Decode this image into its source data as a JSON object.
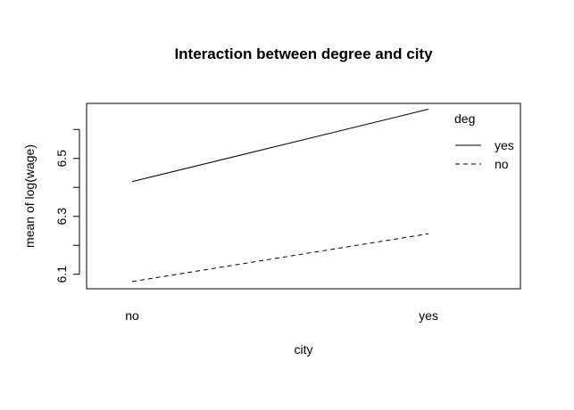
{
  "chart_data": {
    "type": "line",
    "title": "Interaction between degree and city",
    "xlabel": "city",
    "ylabel": "mean of  log(wage)",
    "categories": [
      "no",
      "yes"
    ],
    "series": [
      {
        "name": "yes",
        "values": [
          6.42,
          6.67
        ],
        "linestyle": "solid"
      },
      {
        "name": "no",
        "values": [
          6.075,
          6.24
        ],
        "linestyle": "dashed"
      }
    ],
    "ylim": [
      6.05,
      6.69
    ],
    "yticks_major": [
      "6.1",
      "6.3",
      "6.5"
    ],
    "yticks_all": [
      6.1,
      6.2,
      6.3,
      6.4,
      6.5,
      6.6
    ],
    "legend": {
      "title": "deg",
      "placement": "top-right"
    },
    "grid": false,
    "colors": {
      "line": "#000000",
      "background": "#ffffff"
    }
  }
}
